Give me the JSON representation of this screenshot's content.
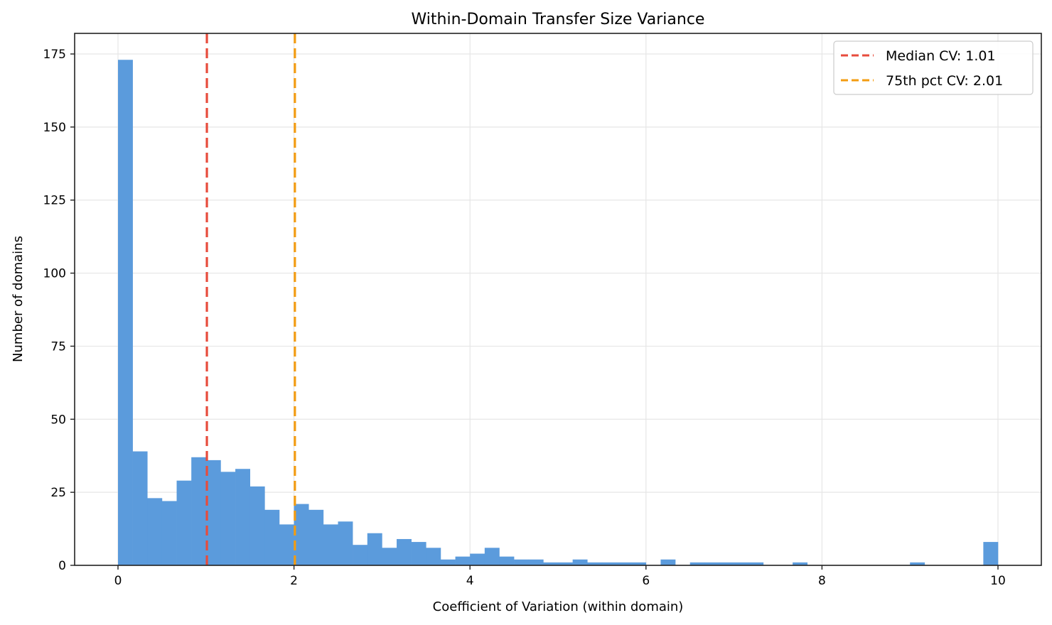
{
  "chart_data": {
    "type": "bar",
    "subtype": "histogram",
    "title": "Within-Domain Transfer Size Variance",
    "xlabel": "Coefficient of Variation (within domain)",
    "ylabel": "Number of domains",
    "xlim": [
      -0.5,
      10.5
    ],
    "ylim": [
      0,
      182
    ],
    "grid": true,
    "legend_position": "upper right",
    "bin_start": 0,
    "bin_end": 10,
    "n_bins": 60,
    "bar_color": "#5b9bdc",
    "values": [
      173,
      39,
      23,
      22,
      29,
      37,
      36,
      32,
      33,
      27,
      19,
      14,
      21,
      19,
      14,
      15,
      7,
      11,
      6,
      9,
      8,
      6,
      2,
      3,
      4,
      6,
      3,
      2,
      2,
      1,
      1,
      2,
      1,
      1,
      1,
      1,
      0,
      2,
      0,
      1,
      1,
      1,
      1,
      1,
      0,
      0,
      1,
      0,
      0,
      0,
      0,
      0,
      0,
      0,
      1,
      0,
      0,
      0,
      0,
      8
    ],
    "x_ticks": [
      0,
      2,
      4,
      6,
      8,
      10
    ],
    "x_tick_labels": [
      "0",
      "2",
      "4",
      "6",
      "8",
      "10"
    ],
    "y_ticks": [
      0,
      25,
      50,
      75,
      100,
      125,
      150,
      175
    ],
    "y_tick_labels": [
      "0",
      "25",
      "50",
      "75",
      "100",
      "125",
      "150",
      "175"
    ],
    "vlines": [
      {
        "x": 1.01,
        "label": "Median CV: 1.01",
        "color": "#e74c3c",
        "style": "dashed"
      },
      {
        "x": 2.01,
        "label": "75th pct CV: 2.01",
        "color": "#f39c12",
        "style": "dashed"
      }
    ]
  },
  "legend": {
    "items": [
      {
        "label": "Median CV: 1.01",
        "color": "#e74c3c"
      },
      {
        "label": "75th pct CV: 2.01",
        "color": "#f39c12"
      }
    ]
  }
}
